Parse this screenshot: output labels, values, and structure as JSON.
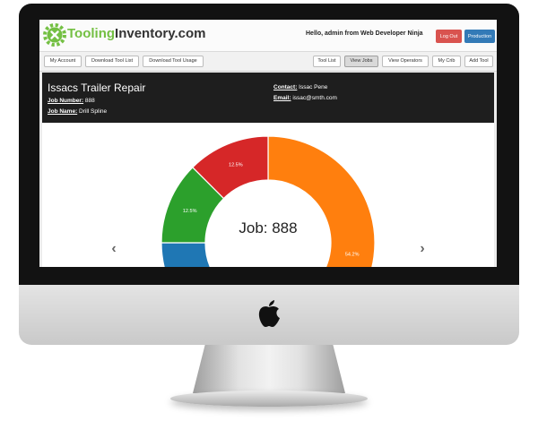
{
  "brand": {
    "name_part1": "Tooling",
    "name_part2": "Inventory.com",
    "accent": "#74c043"
  },
  "header": {
    "greeting": "Hello, admin from Web Developer Ninja",
    "logout_label": "Log Out",
    "production_label": "Production"
  },
  "nav": {
    "my_account": "My Account",
    "download_tool_list": "Download Tool List",
    "download_tool_usage": "Download Tool Usage",
    "tool_list": "Tool List",
    "view_jobs": "View Jobs",
    "view_operators": "View Operators",
    "my_crib": "My Crib",
    "add_tool": "Add Tool"
  },
  "job": {
    "title": "Issacs Trailer Repair",
    "number_label": "Job Number:",
    "number": "888",
    "name_label": "Job Name:",
    "name": "Drill Spline",
    "contact_label": "Contact:",
    "contact": "Issac Pene",
    "email_label": "Email:",
    "email": "issac@smth.com"
  },
  "chart_data": {
    "type": "pie",
    "subtype": "donut",
    "center_label": "Job: 888",
    "categories": [
      "Orange",
      "Blue",
      "Green",
      "Red"
    ],
    "values": [
      54.2,
      20.8,
      12.5,
      12.5
    ],
    "value_labels": [
      "54.2%",
      "",
      "12.5%",
      "12.5%"
    ],
    "colors": [
      "#ff7f0e",
      "#1f77b4",
      "#2ca02c",
      "#d62728"
    ]
  },
  "carousel": {
    "prev": "‹",
    "next": "›"
  }
}
